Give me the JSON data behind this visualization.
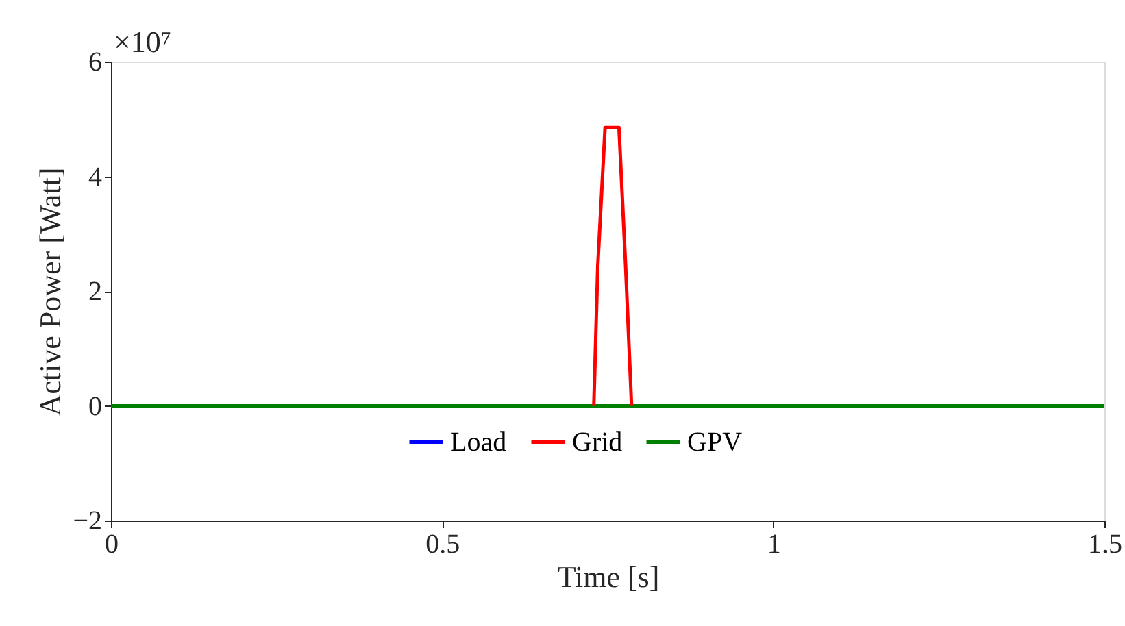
{
  "chart_data": {
    "type": "line",
    "xlabel": "Time [s]",
    "ylabel": "Active Power [Watt]",
    "annotations": [
      "×10⁷"
    ],
    "xlim": [
      0,
      1.5
    ],
    "xticks": [
      0,
      0.5,
      1,
      1.5
    ],
    "ylim": [
      -2,
      6
    ],
    "yticks": [
      -2,
      0,
      2,
      4,
      6
    ],
    "grid": false,
    "legend": "bottom",
    "marker": "none",
    "line_style": "solid",
    "series": [
      {
        "name": "Load",
        "color": "#0000ff"
      },
      {
        "name": "Grid",
        "color": "#ff0000",
        "x": [
          0.729,
          0.735,
          0.746,
          0.767,
          0.777,
          0.786
        ],
        "values": [
          0,
          2.44,
          4.85,
          4.85,
          2.44,
          0
        ]
      },
      {
        "name": "GPV",
        "color": "#008000",
        "x": [
          0,
          1.5
        ],
        "values": [
          0,
          0
        ]
      }
    ]
  }
}
